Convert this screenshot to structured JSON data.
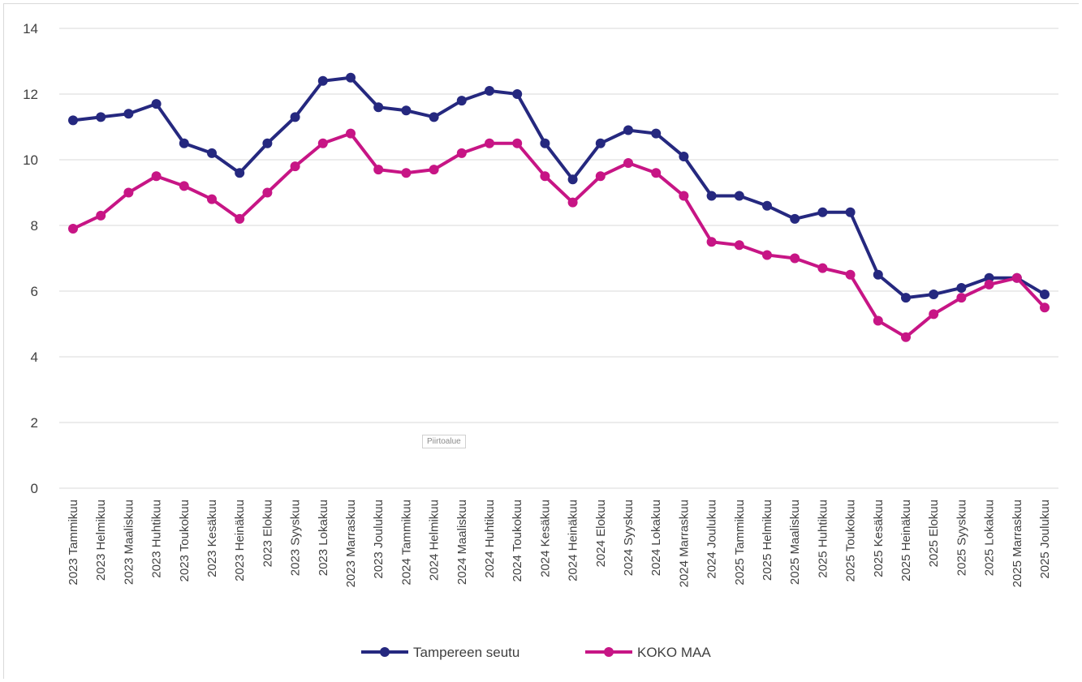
{
  "chart_data": {
    "type": "line",
    "categories": [
      "2023 Tammikuu",
      "2023 Helmikuu",
      "2023 Maaliskuu",
      "2023 Huhtikuu",
      "2023 Toukokuu",
      "2023 Kesäkuu",
      "2023 Heinäkuu",
      "2023 Elokuu",
      "2023 Syyskuu",
      "2023 Lokakuu",
      "2023 Marraskuu",
      "2023 Joulukuu",
      "2024 Tammikuu",
      "2024 Helmikuu",
      "2024 Maaliskuu",
      "2024 Huhtikuu",
      "2024 Toukokuu",
      "2024 Kesäkuu",
      "2024 Heinäkuu",
      "2024 Elokuu",
      "2024 Syyskuu",
      "2024 Lokakuu",
      "2024 Marraskuu",
      "2024 Joulukuu",
      "2025 Tammikuu",
      "2025 Helmikuu",
      "2025 Maaliskuu",
      "2025 Huhtikuu",
      "2025 Toukokuu",
      "2025 Kesäkuu",
      "2025 Heinäkuu",
      "2025 Elokuu",
      "2025 Syyskuu",
      "2025 Lokakuu",
      "2025 Marraskuu",
      "2025 Joulukuu"
    ],
    "series": [
      {
        "name": "Tampereen seutu",
        "color": "#25287f",
        "values": [
          11.2,
          11.3,
          11.4,
          11.7,
          10.5,
          10.2,
          9.6,
          10.5,
          11.3,
          12.4,
          12.5,
          11.6,
          11.5,
          11.3,
          11.8,
          12.1,
          12.0,
          10.5,
          9.4,
          10.5,
          10.9,
          10.8,
          10.1,
          8.9,
          8.9,
          8.6,
          8.2,
          8.4,
          8.4,
          6.5,
          5.8,
          5.9,
          6.1,
          6.4,
          6.4,
          5.9
        ]
      },
      {
        "name": "KOKO MAA",
        "color": "#c71585",
        "values": [
          7.9,
          8.3,
          9.0,
          9.5,
          9.2,
          8.8,
          8.2,
          9.0,
          9.8,
          10.5,
          10.8,
          9.7,
          9.6,
          9.7,
          10.2,
          10.5,
          10.5,
          9.5,
          8.7,
          9.5,
          9.9,
          9.6,
          8.9,
          7.5,
          7.4,
          7.1,
          7.0,
          6.7,
          6.5,
          5.1,
          4.6,
          5.3,
          5.8,
          6.2,
          6.4,
          5.5
        ]
      }
    ],
    "y_ticks": [
      "0",
      "2",
      "4",
      "6",
      "8",
      "10",
      "12",
      "14"
    ],
    "ylim": [
      0,
      14
    ],
    "grid": true,
    "legend_position": "bottom"
  },
  "overlay_hint": "Piirtoalue"
}
